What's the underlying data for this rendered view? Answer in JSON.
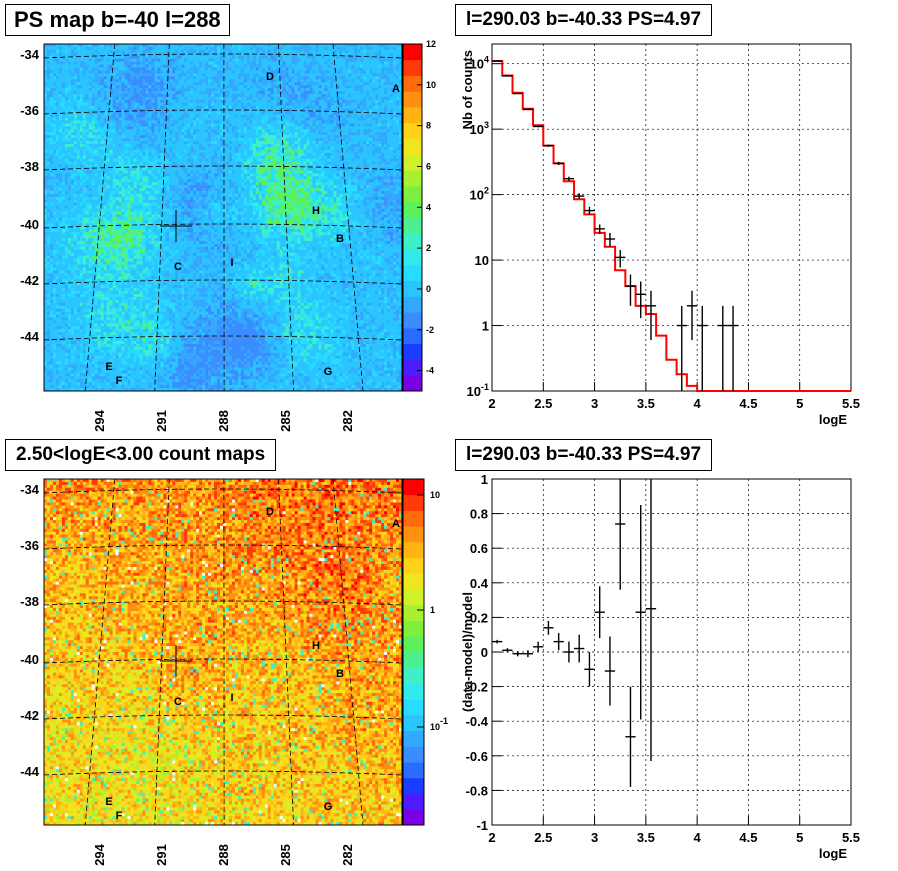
{
  "panels": {
    "tl_title": "PS map b=-40 l=288",
    "tr_title": "l=290.03 b=-40.33 PS=4.97",
    "bl_title": "2.50<logE<3.00 count maps",
    "br_title": "l=290.03 b=-40.33 PS=4.97"
  },
  "chart_data": [
    {
      "type": "heatmap",
      "title": "PS map b=-40 l=288",
      "y_ticks": [
        "-34",
        "-36",
        "-38",
        "-40",
        "-42",
        "-44"
      ],
      "x_ticks": [
        "294",
        "291",
        "288",
        "285",
        "282"
      ],
      "colorbar_ticks": [
        "12",
        "10",
        "8",
        "6",
        "4",
        "2",
        "0",
        "-2",
        "-4"
      ],
      "colorbar_range": [
        -5,
        12
      ],
      "source_labels": [
        "A",
        "B",
        "C",
        "D",
        "E",
        "F",
        "G",
        "H",
        "I"
      ],
      "grid": true
    },
    {
      "type": "line",
      "title": "l=290.03 b=-40.33 PS=4.97",
      "xlabel": "logE",
      "ylabel": "Nb of counts",
      "xlim": [
        2,
        5.5
      ],
      "ylim": [
        0.1,
        20000
      ],
      "yscale": "log",
      "x_ticks": [
        "2",
        "2.5",
        "3",
        "3.5",
        "4",
        "4.5",
        "5",
        "5.5"
      ],
      "y_ticks": [
        "10^4",
        "10^3",
        "10^2",
        "10",
        "1",
        "10^-1"
      ],
      "grid": true,
      "series": [
        {
          "kind": "data",
          "points": [
            {
              "x": 2.05,
              "y": 11000,
              "ylo": 10900,
              "yhi": 11100
            },
            {
              "x": 2.15,
              "y": 6500,
              "ylo": 6420,
              "yhi": 6580
            },
            {
              "x": 2.25,
              "y": 3500,
              "ylo": 3440,
              "yhi": 3560
            },
            {
              "x": 2.35,
              "y": 2000,
              "ylo": 1955,
              "yhi": 2045
            },
            {
              "x": 2.45,
              "y": 1100,
              "ylo": 1067,
              "yhi": 1133
            },
            {
              "x": 2.55,
              "y": 560,
              "ylo": 536,
              "yhi": 584
            },
            {
              "x": 2.65,
              "y": 300,
              "ylo": 283,
              "yhi": 317
            },
            {
              "x": 2.75,
              "y": 175,
              "ylo": 162,
              "yhi": 188
            },
            {
              "x": 2.85,
              "y": 95,
              "ylo": 86,
              "yhi": 105
            },
            {
              "x": 2.95,
              "y": 57,
              "ylo": 49,
              "yhi": 65
            },
            {
              "x": 3.05,
              "y": 30,
              "ylo": 25,
              "yhi": 35
            },
            {
              "x": 3.15,
              "y": 21,
              "ylo": 16,
              "yhi": 26
            },
            {
              "x": 3.25,
              "y": 11,
              "ylo": 7.7,
              "yhi": 14.3
            },
            {
              "x": 3.35,
              "y": 4,
              "ylo": 2,
              "yhi": 6
            },
            {
              "x": 3.45,
              "y": 3,
              "ylo": 1.3,
              "yhi": 4.7
            },
            {
              "x": 3.55,
              "y": 2,
              "ylo": 0.6,
              "yhi": 3.4
            },
            {
              "x": 3.85,
              "y": 1,
              "ylo": 0.05,
              "yhi": 2
            },
            {
              "x": 3.95,
              "y": 2,
              "ylo": 0.6,
              "yhi": 3.4
            },
            {
              "x": 4.05,
              "y": 1,
              "ylo": 0.05,
              "yhi": 2
            },
            {
              "x": 4.25,
              "y": 1,
              "ylo": 0.05,
              "yhi": 2
            },
            {
              "x": 4.35,
              "y": 1,
              "ylo": 0.05,
              "yhi": 2
            }
          ]
        },
        {
          "kind": "model",
          "color": "#ff0000",
          "bins": [
            {
              "x0": 2.0,
              "x1": 2.1,
              "y": 11000
            },
            {
              "x0": 2.1,
              "x1": 2.2,
              "y": 6600
            },
            {
              "x0": 2.2,
              "x1": 2.3,
              "y": 3600
            },
            {
              "x0": 2.3,
              "x1": 2.4,
              "y": 2050
            },
            {
              "x0": 2.4,
              "x1": 2.5,
              "y": 1150
            },
            {
              "x0": 2.5,
              "x1": 2.6,
              "y": 560
            },
            {
              "x0": 2.6,
              "x1": 2.7,
              "y": 300
            },
            {
              "x0": 2.7,
              "x1": 2.8,
              "y": 160
            },
            {
              "x0": 2.8,
              "x1": 2.9,
              "y": 85
            },
            {
              "x0": 2.9,
              "x1": 3.0,
              "y": 50
            },
            {
              "x0": 3.0,
              "x1": 3.1,
              "y": 26
            },
            {
              "x0": 3.1,
              "x1": 3.2,
              "y": 16
            },
            {
              "x0": 3.2,
              "x1": 3.3,
              "y": 7
            },
            {
              "x0": 3.3,
              "x1": 3.4,
              "y": 4
            },
            {
              "x0": 3.4,
              "x1": 3.5,
              "y": 2
            },
            {
              "x0": 3.5,
              "x1": 3.6,
              "y": 1.5
            },
            {
              "x0": 3.6,
              "x1": 3.7,
              "y": 0.7
            },
            {
              "x0": 3.7,
              "x1": 3.8,
              "y": 0.3
            },
            {
              "x0": 3.8,
              "x1": 3.9,
              "y": 0.18
            },
            {
              "x0": 3.9,
              "x1": 4.0,
              "y": 0.12
            },
            {
              "x0": 4.0,
              "x1": 5.5,
              "y": 0.1
            }
          ]
        }
      ]
    },
    {
      "type": "heatmap",
      "title": "2.50<logE<3.00 count maps",
      "y_ticks": [
        "-34",
        "-36",
        "-38",
        "-40",
        "-42",
        "-44"
      ],
      "x_ticks": [
        "294",
        "291",
        "288",
        "285",
        "282"
      ],
      "colorbar_ticks": [
        "10",
        "1",
        "10^-1"
      ],
      "colorbar_scale": "log",
      "source_labels": [
        "A",
        "B",
        "C",
        "D",
        "E",
        "F",
        "G",
        "H",
        "I"
      ],
      "grid": true
    },
    {
      "type": "scatter",
      "title": "l=290.03 b=-40.33 PS=4.97",
      "xlabel": "logE",
      "ylabel": "(data-model)/model",
      "xlim": [
        2,
        5.5
      ],
      "ylim": [
        -1,
        1
      ],
      "x_ticks": [
        "2",
        "2.5",
        "3",
        "3.5",
        "4",
        "4.5",
        "5",
        "5.5"
      ],
      "y_ticks": [
        "1",
        "0.8",
        "0.6",
        "0.4",
        "0.2",
        "0",
        "-0.2",
        "-0.4",
        "-0.6",
        "-0.8",
        "-1"
      ],
      "grid": true,
      "points": [
        {
          "x": 2.05,
          "y": 0.06,
          "err": 0.01
        },
        {
          "x": 2.15,
          "y": 0.01,
          "err": 0.012
        },
        {
          "x": 2.25,
          "y": -0.01,
          "err": 0.015
        },
        {
          "x": 2.35,
          "y": -0.01,
          "err": 0.02
        },
        {
          "x": 2.45,
          "y": 0.03,
          "err": 0.03
        },
        {
          "x": 2.55,
          "y": 0.14,
          "err": 0.04
        },
        {
          "x": 2.65,
          "y": 0.06,
          "err": 0.05
        },
        {
          "x": 2.75,
          "y": 0.0,
          "err": 0.06
        },
        {
          "x": 2.85,
          "y": 0.02,
          "err": 0.08
        },
        {
          "x": 2.95,
          "y": -0.1,
          "err": 0.1
        },
        {
          "x": 3.05,
          "y": 0.23,
          "err": 0.15
        },
        {
          "x": 3.15,
          "y": -0.11,
          "err": 0.2
        },
        {
          "x": 3.25,
          "y": 0.74,
          "err": 0.38
        },
        {
          "x": 3.35,
          "y": -0.49,
          "err": 0.29
        },
        {
          "x": 3.45,
          "y": 0.23,
          "err": 0.62
        },
        {
          "x": 3.55,
          "y": 0.25,
          "err": 0.88
        }
      ]
    }
  ]
}
